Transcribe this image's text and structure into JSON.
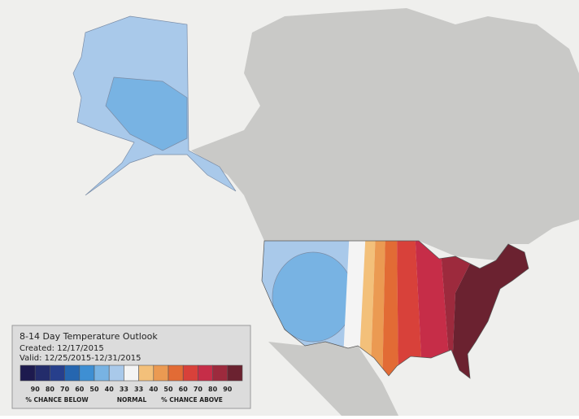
{
  "legend": {
    "title": "8-14 Day Temperature Outlook",
    "created": "Created: 12/17/2015",
    "valid": "Valid: 12/25/2015-12/31/2015",
    "swatches": [
      "#1d1a4e",
      "#232c6b",
      "#273f8c",
      "#2566b0",
      "#3e8fd3",
      "#78b3e3",
      "#a9c9ea",
      "#f4f4f4",
      "#f3c07a",
      "#eb9a52",
      "#e26b35",
      "#d8413a",
      "#c62d48",
      "#9d2a3d",
      "#6b2230"
    ],
    "labels": [
      "90",
      "80",
      "70",
      "60",
      "50",
      "40",
      "33",
      "33",
      "40",
      "50",
      "60",
      "70",
      "80",
      "90"
    ],
    "below": "% CHANCE BELOW",
    "normal": "NORMAL",
    "above": "% CHANCE ABOVE"
  }
}
